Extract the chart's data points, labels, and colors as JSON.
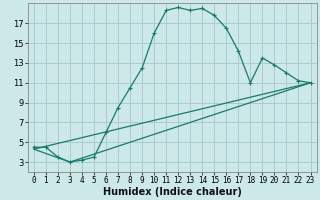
{
  "title": "",
  "xlabel": "Humidex (Indice chaleur)",
  "background_color": "#cce8e8",
  "grid_color": "#aacccc",
  "line_color": "#1a7a6a",
  "xlim": [
    -0.5,
    23.5
  ],
  "ylim": [
    2,
    19
  ],
  "xticks": [
    0,
    1,
    2,
    3,
    4,
    5,
    6,
    7,
    8,
    9,
    10,
    11,
    12,
    13,
    14,
    15,
    16,
    17,
    18,
    19,
    20,
    21,
    22,
    23
  ],
  "yticks": [
    3,
    5,
    7,
    9,
    11,
    13,
    15,
    17
  ],
  "curve1_x": [
    0,
    1,
    2,
    3,
    4,
    5,
    6,
    7,
    8,
    9,
    10,
    11,
    12,
    13,
    14,
    15,
    16,
    17,
    18,
    19,
    20,
    21,
    22,
    23
  ],
  "curve1_y": [
    4.5,
    4.5,
    3.5,
    3.0,
    3.2,
    3.5,
    6.0,
    8.5,
    10.5,
    12.5,
    16.0,
    18.3,
    18.6,
    18.3,
    18.5,
    17.8,
    16.5,
    14.2,
    11.0,
    13.5,
    12.8,
    12.0,
    11.2,
    11.0
  ],
  "curve2_x": [
    0,
    23
  ],
  "curve2_y": [
    4.3,
    11.0
  ],
  "curve3_x": [
    0,
    3,
    23
  ],
  "curve3_y": [
    4.3,
    3.0,
    11.0
  ],
  "xlabel_fontsize": 7,
  "tick_fontsize": 5.5,
  "ytick_fontsize": 6,
  "linewidth": 0.9,
  "marker_size": 2.5,
  "marker_ew": 0.8
}
